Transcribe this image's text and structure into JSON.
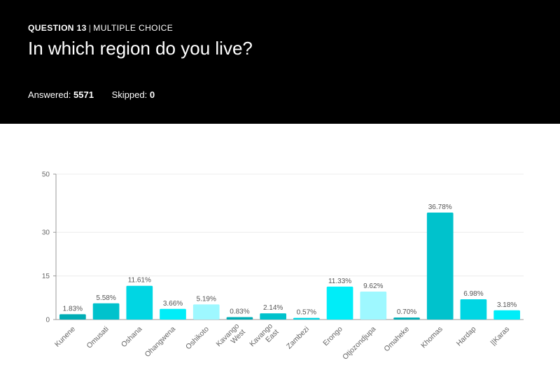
{
  "header": {
    "question_number": "QUESTION 13",
    "separator": "|",
    "question_type": "MULTIPLE CHOICE",
    "title": "In which region do you live?",
    "answered_label": "Answered:",
    "answered_value": "5571",
    "skipped_label": "Skipped:",
    "skipped_value": "0"
  },
  "colors": {
    "header_bg": "#000000",
    "dark_teal": "#00b0b9",
    "mid_cyan": "#00d3e0",
    "bright_cyan": "#00f0ff",
    "light_cyan": "#99f6ff"
  },
  "chart_data": {
    "type": "bar",
    "categories": [
      "Kunene",
      "Omusati",
      "Oshana",
      "Ohangwena",
      "Oshikoto",
      "Kavango West",
      "Kavango East",
      "Zambezi",
      "Erongo",
      "Otjozondjupa",
      "Omaheke",
      "Khomas",
      "Hardap",
      "||Karas"
    ],
    "values": [
      1.83,
      5.58,
      11.61,
      3.66,
      5.19,
      0.83,
      2.14,
      0.57,
      11.33,
      9.62,
      0.7,
      36.78,
      6.98,
      3.18
    ],
    "value_labels": [
      "1.83%",
      "5.58%",
      "11.61%",
      "3.66%",
      "5.19%",
      "0.83%",
      "2.14%",
      "0.57%",
      "11.33%",
      "9.62%",
      "0.70%",
      "36.78%",
      "6.98%",
      "3.18%"
    ],
    "bar_colors": [
      "#00adb5",
      "#00c2cc",
      "#00d6e3",
      "#00edf8",
      "#9ef8ff",
      "#00adb5",
      "#00c2cc",
      "#00d6e3",
      "#00edf8",
      "#9ef8ff",
      "#00adb5",
      "#00c2cc",
      "#00d6e3",
      "#00edf8"
    ],
    "yticks": [
      0,
      15,
      30,
      50
    ],
    "ylim": [
      0,
      50
    ],
    "grid": true
  }
}
